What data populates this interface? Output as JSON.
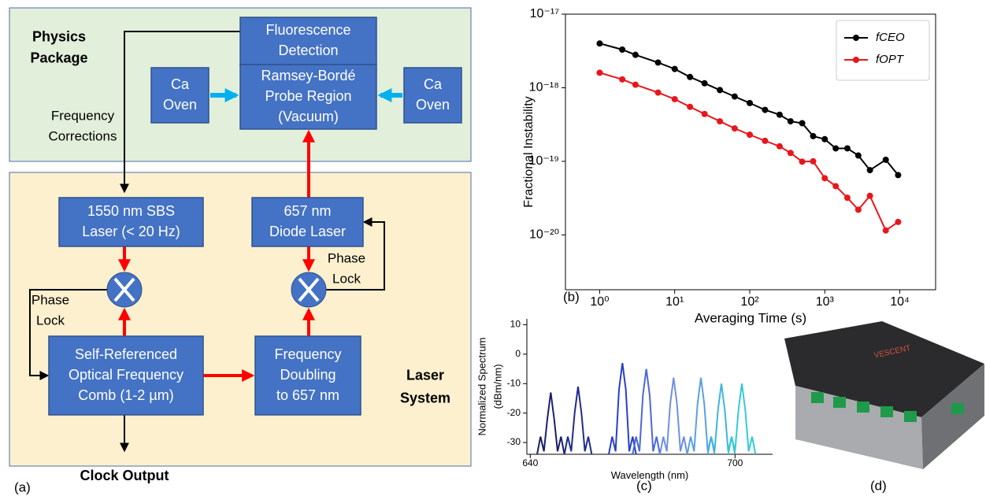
{
  "diagram": {
    "physics_label": [
      "Physics",
      "Package"
    ],
    "laser_label": [
      "Laser",
      "System"
    ],
    "boxes": [
      [
        "Fluorescence",
        "Detection"
      ],
      [
        "Ramsey-Bordé",
        "Probe Region",
        "(Vacuum)"
      ],
      [
        "Ca",
        "Oven"
      ],
      [
        "Ca",
        "Oven"
      ],
      [
        "1550 nm SBS",
        "Laser (< 20 Hz)"
      ],
      [
        "657 nm",
        "Diode Laser"
      ],
      [
        "Self-Referenced",
        "Optical Frequency",
        "Comb (1-2 µm)"
      ],
      [
        "Frequency",
        "Doubling",
        "to 657 nm"
      ]
    ],
    "annotations": [
      [
        "Frequency",
        "Corrections"
      ],
      [
        "Phase",
        "Lock"
      ],
      [
        "Phase",
        "Lock"
      ]
    ],
    "output": "Clock Output"
  },
  "panel_labels": [
    "(a)",
    "(b)",
    "(c)",
    "(d)"
  ],
  "photo": {
    "logo": "VESCENT"
  },
  "chart_data": [
    {
      "type": "line",
      "xlabel": "Averaging Time (s)",
      "ylabel": "Fractional Instability",
      "xscale": "log",
      "yscale": "log",
      "xlim": [
        0.35,
        30000
      ],
      "ylim": [
        1.8e-21,
        1e-17
      ],
      "xticks": [
        {
          "value": 1,
          "label": "10⁰"
        },
        {
          "value": 10,
          "label": "10¹"
        },
        {
          "value": 100,
          "label": "10²"
        },
        {
          "value": 1000,
          "label": "10³"
        },
        {
          "value": 10000,
          "label": "10⁴"
        }
      ],
      "yticks": [
        {
          "value": 1e-20,
          "label": "10⁻²⁰"
        },
        {
          "value": 1e-19,
          "label": "10⁻¹⁹"
        },
        {
          "value": 1e-18,
          "label": "10⁻¹⁸"
        },
        {
          "value": 1e-17,
          "label": "10⁻¹⁷"
        }
      ],
      "legend": "upper right",
      "markers": true,
      "x": [
        1,
        2,
        3,
        6,
        10,
        16,
        25,
        40,
        63,
        100,
        160,
        250,
        350,
        500,
        700,
        1000,
        1400,
        2000,
        2800,
        4000,
        6500,
        9500
      ],
      "series": [
        {
          "name": "fCEO",
          "color": "#000000",
          "values": [
            4e-18,
            3.3e-18,
            2.8e-18,
            2.2e-18,
            1.8e-18,
            1.4e-18,
            1.15e-18,
            9.3e-19,
            7.6e-19,
            6.2e-19,
            5e-19,
            4.3e-19,
            3.5e-19,
            3.3e-19,
            2.2e-19,
            2e-19,
            1.5e-19,
            1.5e-19,
            1.2e-19,
            7.6e-20,
            1.05e-19,
            6.5e-20
          ]
        },
        {
          "name": "fOPT",
          "color": "#e8161b",
          "values": [
            1.6e-18,
            1.3e-18,
            1.1e-18,
            8.6e-19,
            7e-19,
            5.5e-19,
            4.4e-19,
            3.5e-19,
            2.8e-19,
            2.3e-19,
            1.9e-19,
            1.6e-19,
            1.3e-19,
            9.9e-20,
            1e-19,
            5.9e-20,
            4.6e-20,
            3.2e-20,
            2.2e-20,
            3.4e-20,
            1.15e-20,
            1.5e-20
          ]
        }
      ]
    },
    {
      "type": "line",
      "xlabel": "Wavelength (nm)",
      "ylabel": [
        "Normalized Spectrum",
        "(dBm/nm)"
      ],
      "xlim": [
        639,
        711
      ],
      "ylim": [
        -34,
        12
      ],
      "xticks": [
        640,
        700
      ],
      "yticks": [
        10,
        0,
        -10,
        -20,
        -30
      ],
      "markers": false,
      "series": [
        {
          "color": "#1b2068",
          "x": [
            642,
            643,
            644,
            645,
            646,
            647,
            648,
            649,
            650
          ],
          "values": [
            -34,
            -28,
            -33,
            -22,
            -13,
            -22,
            -33,
            -28,
            -34
          ]
        },
        {
          "color": "#202c8c",
          "x": [
            650,
            651,
            652,
            653,
            654,
            655,
            656,
            657,
            658
          ],
          "values": [
            -34,
            -28,
            -33,
            -20,
            -11,
            -20,
            -33,
            -28,
            -34
          ]
        },
        {
          "color": "#2a3fc4",
          "x": [
            663,
            664,
            665,
            666,
            667,
            668,
            669,
            670,
            671
          ],
          "values": [
            -34,
            -28,
            -33,
            -12,
            -3,
            -12,
            -33,
            -28,
            -34
          ]
        },
        {
          "color": "#4c68d8",
          "x": [
            670,
            671,
            672,
            673,
            674,
            675,
            676,
            677,
            678
          ],
          "values": [
            -34,
            -28,
            -33,
            -14,
            -5,
            -14,
            -33,
            -28,
            -34
          ]
        },
        {
          "color": "#6f8fe2",
          "x": [
            678,
            679,
            680,
            681,
            682,
            683,
            684,
            685,
            686
          ],
          "values": [
            -34,
            -28,
            -33,
            -17,
            -8,
            -17,
            -33,
            -28,
            -34
          ]
        },
        {
          "color": "#5aa0e0",
          "x": [
            686,
            687,
            688,
            689,
            690,
            691,
            692,
            693,
            694
          ],
          "values": [
            -34,
            -28,
            -33,
            -17,
            -8,
            -17,
            -33,
            -28,
            -34
          ]
        },
        {
          "color": "#3fb4e2",
          "x": [
            692,
            693,
            694,
            695,
            696,
            697,
            698,
            699,
            700
          ],
          "values": [
            -34,
            -28,
            -33,
            -19,
            -10,
            -19,
            -33,
            -28,
            -34
          ]
        },
        {
          "color": "#35cad6",
          "x": [
            698,
            699,
            700,
            701,
            702,
            703,
            704,
            705,
            706
          ],
          "values": [
            -34,
            -28,
            -33,
            -19,
            -10,
            -19,
            -33,
            -28,
            -34
          ]
        }
      ]
    }
  ]
}
